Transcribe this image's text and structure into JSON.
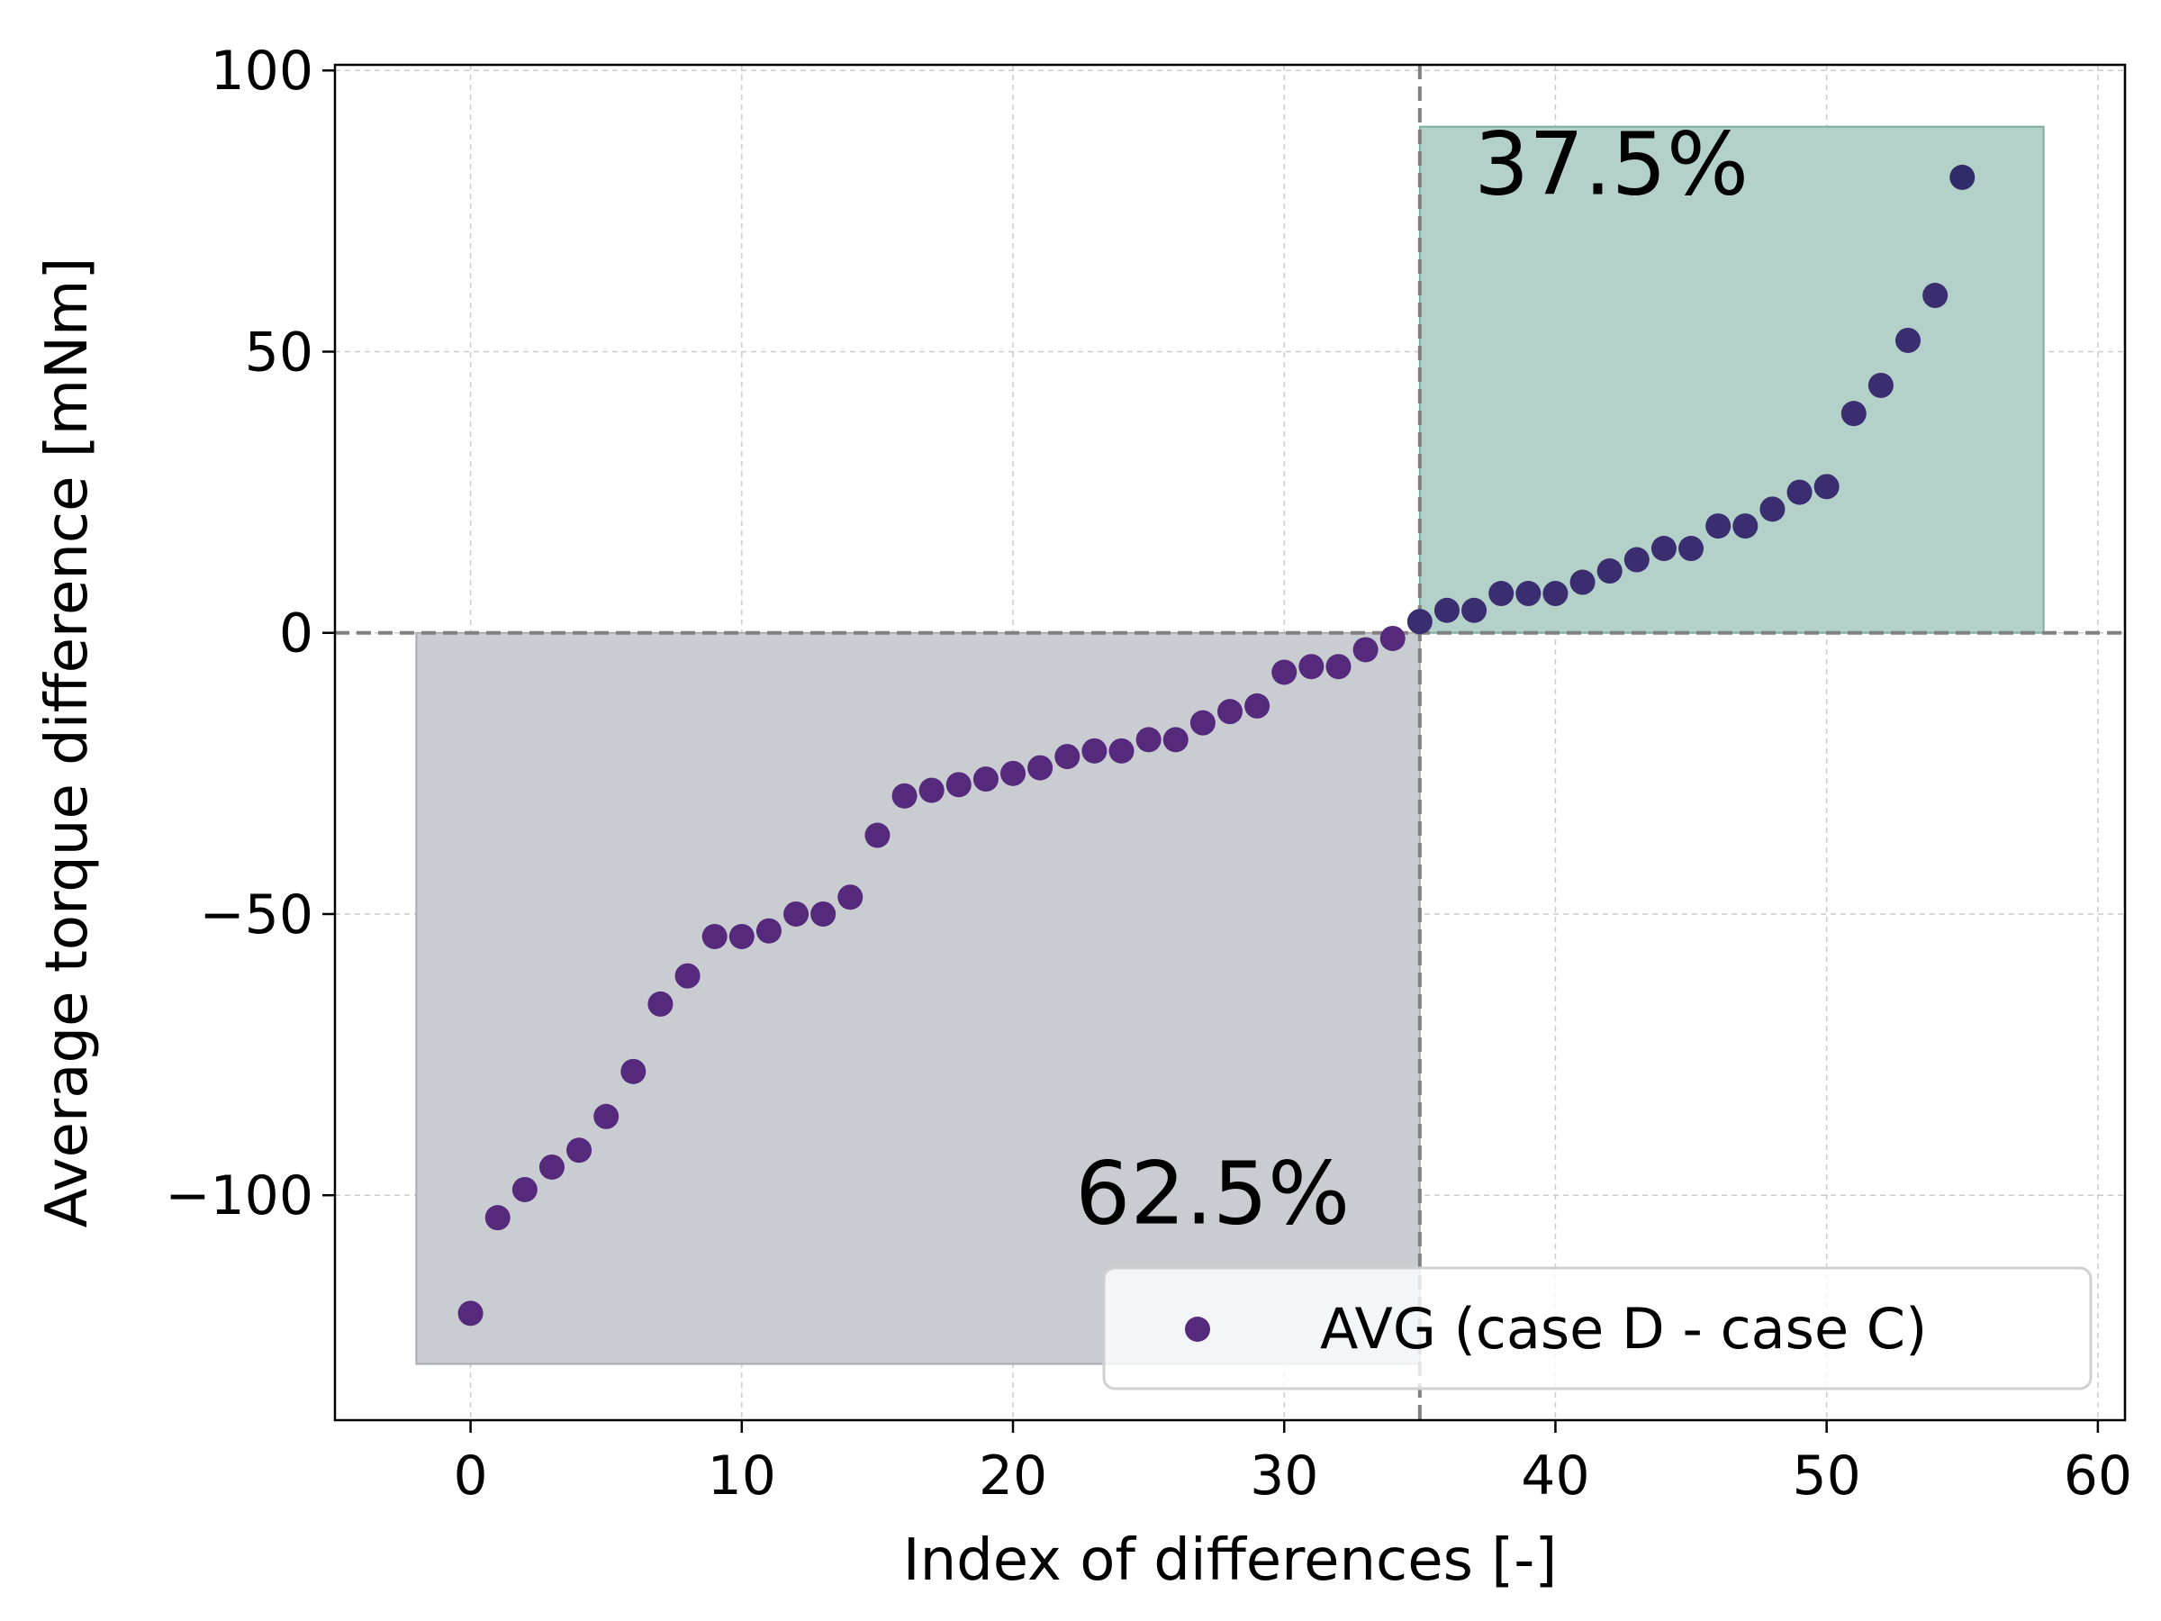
{
  "chart_data": {
    "type": "scatter",
    "title": "",
    "xlabel": "Index of differences [-]",
    "ylabel": "Average torque difference [mNm]",
    "xlim": [
      -5,
      61
    ],
    "ylim": [
      -140,
      101
    ],
    "xticks": [
      0,
      10,
      20,
      30,
      40,
      50,
      60
    ],
    "xtick_labels": [
      "0",
      "10",
      "20",
      "30",
      "40",
      "50",
      "60"
    ],
    "yticks": [
      100,
      50,
      0,
      -50,
      -100
    ],
    "ytick_labels": [
      "100",
      "50",
      "0",
      "−50",
      "−100"
    ],
    "grid": true,
    "legend": {
      "position": "bottom-right",
      "entries": [
        "AVG (case D - case C)"
      ]
    },
    "series": [
      {
        "name": "AVG (case D - case C)",
        "x": [
          0,
          1,
          2,
          3,
          4,
          5,
          6,
          7,
          8,
          9,
          10,
          11,
          12,
          13,
          14,
          15,
          16,
          17,
          18,
          19,
          20,
          21,
          22,
          23,
          24,
          25,
          26,
          27,
          28,
          29,
          30,
          31,
          32,
          33,
          34,
          35,
          36,
          37,
          38,
          39,
          40,
          41,
          42,
          43,
          44,
          45,
          46,
          47,
          48,
          49,
          50,
          51,
          52,
          53,
          54,
          55
        ],
        "y": [
          -121,
          -104,
          -99,
          -95,
          -92,
          -86,
          -78,
          -66,
          -61,
          -54,
          -54,
          -53,
          -50,
          -50,
          -47,
          -36,
          -29,
          -28,
          -27,
          -26,
          -25,
          -24,
          -22,
          -21,
          -21,
          -19,
          -19,
          -16,
          -14,
          -13,
          -7,
          -6,
          -6,
          -3,
          -1,
          2,
          4,
          4,
          7,
          7,
          7,
          9,
          11,
          13,
          15,
          15,
          19,
          19,
          22,
          25,
          26,
          39,
          44,
          52,
          60,
          81
        ],
        "colors": [
          "#55297c",
          "#55297c",
          "#55297c",
          "#55297c",
          "#55297c",
          "#55297c",
          "#55297c",
          "#55297c",
          "#55297c",
          "#55297c",
          "#55297c",
          "#55297c",
          "#55297c",
          "#55297c",
          "#55297c",
          "#55297c",
          "#55297c",
          "#55297c",
          "#55297c",
          "#55297c",
          "#55297c",
          "#55297c",
          "#55297c",
          "#55297c",
          "#55297c",
          "#55297c",
          "#55297c",
          "#55297c",
          "#55297c",
          "#55297c",
          "#55297c",
          "#55297c",
          "#55297c",
          "#55297c",
          "#55297c",
          "#3a2d70",
          "#3a2d70",
          "#3a2d70",
          "#3a2d70",
          "#3a2d70",
          "#3a2d70",
          "#3a2d70",
          "#3a2d70",
          "#3a2d70",
          "#3a2d70",
          "#3a2d70",
          "#3a2d70",
          "#3a2d70",
          "#3a2d70",
          "#3a2d70",
          "#3a2d70",
          "#3a2d70",
          "#3a2d70",
          "#3a2d70",
          "#3a2d70",
          "#302c6a"
        ]
      }
    ],
    "reference_lines": {
      "x": 35,
      "y": 0
    },
    "regions": [
      {
        "name": "positive",
        "x": [
          35,
          58
        ],
        "y": [
          0,
          90
        ],
        "color": "#b3d0c9",
        "edge": "#7fae9f",
        "label": "37.5%",
        "label_pos": [
          37,
          78
        ]
      },
      {
        "name": "negative",
        "x": [
          -2,
          35
        ],
        "y": [
          -130,
          0
        ],
        "color": "#c9ccd1",
        "edge": "#a9adb3",
        "label": "62.5%",
        "label_pos": [
          22.3,
          -105
        ]
      }
    ]
  }
}
